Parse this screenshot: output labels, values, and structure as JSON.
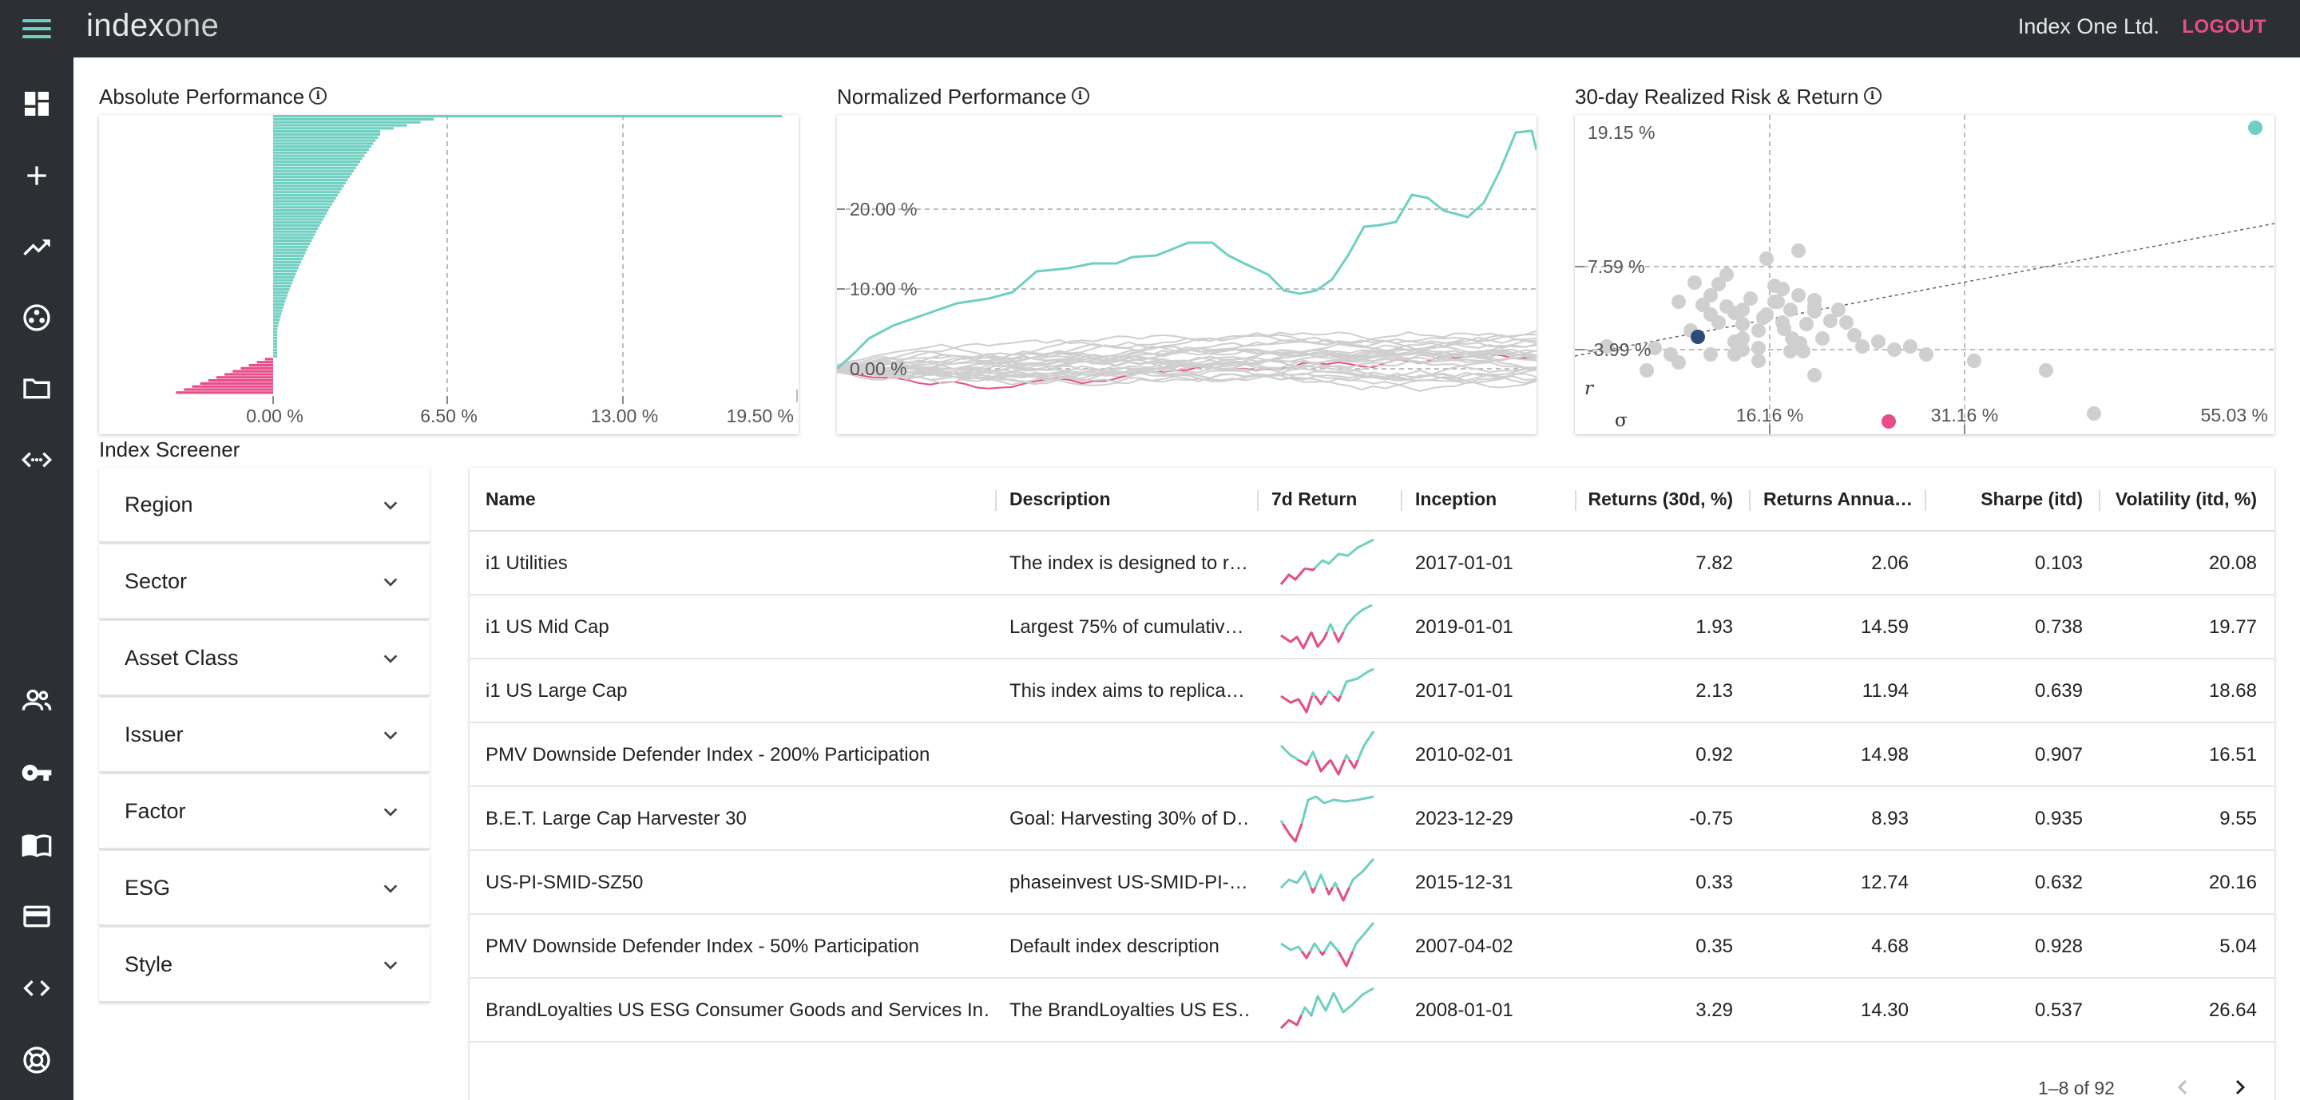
{
  "app": {
    "logo_a": "index",
    "logo_b": "one",
    "company": "Index One Ltd.",
    "logout": "LOGOUT"
  },
  "sidebar": {
    "icons": [
      "dashboard-icon",
      "add-icon",
      "trending-up-icon",
      "bubbles-icon",
      "folder-icon",
      "code-arrows-icon",
      "people-icon",
      "key-icon",
      "book-icon",
      "card-icon",
      "code-icon",
      "support-icon"
    ]
  },
  "panels": {
    "absolute": "Absolute Performance",
    "normalized": "Normalized Performance",
    "risk": "30-day Realized Risk & Return",
    "screener": "Index Screener"
  },
  "abs_chart": {
    "ticks": [
      "0.00 %",
      "6.50 %",
      "13.00 %",
      "19.50 %"
    ]
  },
  "norm_chart": {
    "ticks": [
      "20.00 %",
      "10.00 %",
      "0.00 %"
    ]
  },
  "risk_chart": {
    "y_ticks": [
      "19.15 %",
      "7.59 %",
      "-3.99 %"
    ],
    "x_ticks": [
      "16.16 %",
      "31.16 %",
      "55.03 %"
    ],
    "x_axis": "σ",
    "y_axis": "r"
  },
  "colors": {
    "teal": "#6fd0c2",
    "pink": "#e84d8a",
    "navy": "#2d4a7a",
    "grey": "#cfcfcf",
    "chrome": "#2c2f33"
  },
  "filters": [
    "Region",
    "Sector",
    "Asset Class",
    "Issuer",
    "Factor",
    "ESG",
    "Style"
  ],
  "table": {
    "headers": {
      "name": "Name",
      "description": "Description",
      "ret7d": "7d Return",
      "inception": "Inception",
      "ret30d": "Returns (30d, %)",
      "retann": "Returns Annua…",
      "sharpe": "Sharpe (itd)",
      "vol": "Volatility (itd, %)"
    },
    "rows": [
      {
        "name": "i1 Utilities",
        "description": "The index is designed to r…",
        "inception": "2017-01-01",
        "ret30d": "7.82",
        "retann": "2.06",
        "sharpe": "0.103",
        "vol": "20.08"
      },
      {
        "name": "i1 US Mid Cap",
        "description": "Largest 75% of cumulativ…",
        "inception": "2019-01-01",
        "ret30d": "1.93",
        "retann": "14.59",
        "sharpe": "0.738",
        "vol": "19.77"
      },
      {
        "name": "i1 US Large Cap",
        "description": "This index aims to replica…",
        "inception": "2017-01-01",
        "ret30d": "2.13",
        "retann": "11.94",
        "sharpe": "0.639",
        "vol": "18.68"
      },
      {
        "name": "PMV Downside Defender Index - 200% Participation",
        "description": "",
        "inception": "2010-02-01",
        "ret30d": "0.92",
        "retann": "14.98",
        "sharpe": "0.907",
        "vol": "16.51"
      },
      {
        "name": "B.E.T. Large Cap Harvester 30",
        "description": "Goal: Harvesting 30% of D…",
        "inception": "2023-12-29",
        "ret30d": "-0.75",
        "retann": "8.93",
        "sharpe": "0.935",
        "vol": "9.55"
      },
      {
        "name": "US-PI-SMID-SZ50",
        "description": "phaseinvest US-SMID-PI-…",
        "inception": "2015-12-31",
        "ret30d": "0.33",
        "retann": "12.74",
        "sharpe": "0.632",
        "vol": "20.16"
      },
      {
        "name": "PMV Downside Defender Index - 50% Participation",
        "description": "Default index description",
        "inception": "2007-04-02",
        "ret30d": "0.35",
        "retann": "4.68",
        "sharpe": "0.928",
        "vol": "5.04"
      },
      {
        "name": "BrandLoyalties US ESG Consumer Goods and Services In…",
        "description": "The BrandLoyalties US ES…",
        "inception": "2008-01-01",
        "ret30d": "3.29",
        "retann": "14.30",
        "sharpe": "0.537",
        "vol": "26.64"
      }
    ],
    "pagination": "1–8 of 92"
  }
}
